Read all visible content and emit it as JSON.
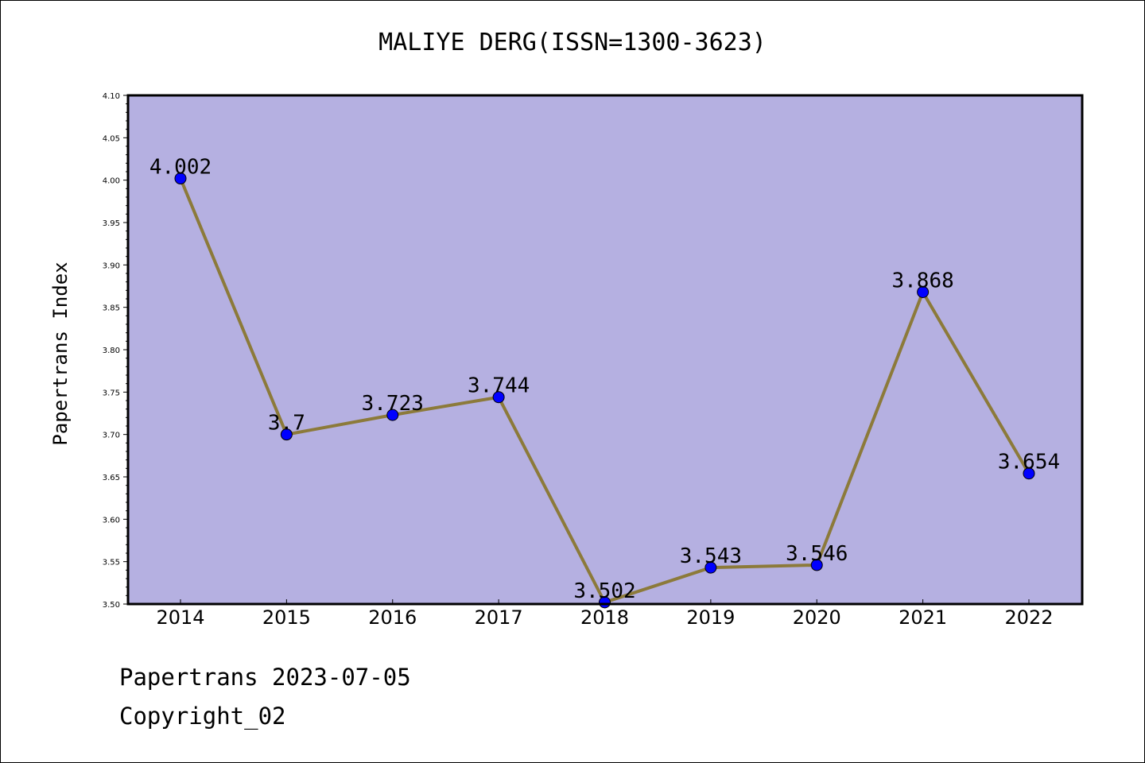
{
  "title": "MALIYE DERG(ISSN=1300-3623)",
  "footer": {
    "date_text": "Papertrans 2023-07-05",
    "copyright_text": "Copyright_02"
  },
  "colors": {
    "plot_background": "#b5b0e1",
    "line": "#8c7a3a",
    "marker": "#0000ff"
  },
  "chart_data": {
    "type": "line",
    "title": "MALIYE DERG(ISSN=1300-3623)",
    "xlabel": "",
    "ylabel": "Papertrans Index",
    "categories": [
      "2014",
      "2015",
      "2016",
      "2017",
      "2018",
      "2019",
      "2020",
      "2021",
      "2022"
    ],
    "values": [
      4.002,
      3.7,
      3.723,
      3.744,
      3.502,
      3.543,
      3.546,
      3.868,
      3.654
    ],
    "data_labels": [
      "4.002",
      "3.7",
      "3.723",
      "3.744",
      "3.502",
      "3.543",
      "3.546",
      "3.868",
      "3.654"
    ],
    "ylim": [
      3.5,
      4.1
    ],
    "yticks": [
      "3.50",
      "3.55",
      "3.60",
      "3.65",
      "3.70",
      "3.75",
      "3.80",
      "3.85",
      "3.90",
      "3.95",
      "4.00",
      "4.05",
      "4.10"
    ],
    "grid": false,
    "legend": "none"
  }
}
